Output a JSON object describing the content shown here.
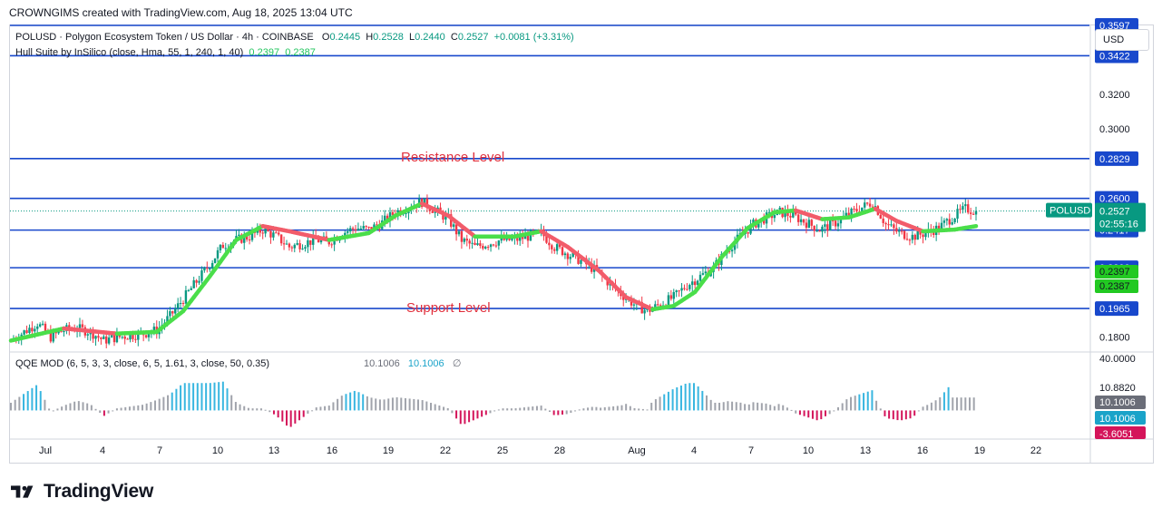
{
  "header": {
    "text": "CROWNGIMS created with TradingView.com, Aug 18, 2025 13:04 UTC"
  },
  "legend": {
    "symbol": "POLUSD · Polygon Ecosystem Token / US Dollar · 4h · COINBASE",
    "o_label": "O",
    "o": "0.2445",
    "h_label": "H",
    "h": "0.2528",
    "l_label": "L",
    "l": "0.2440",
    "c_label": "C",
    "c": "0.2527",
    "change": "+0.0081 (+3.31%)",
    "indicator": "Hull Suite by InSilico (close, Hma, 55, 1, 240, 1, 40)",
    "ind_v1": "0.2397",
    "ind_v2": "0.2387",
    "osc": "QQE MOD (6, 5, 3, 3, close, 6, 5, 1.61, 3, close, 50, 0.35)",
    "osc_v1": "10.1006",
    "osc_v2": "10.1006",
    "osc_v3": "∅"
  },
  "currency_button": "USD",
  "logo_text": "TradingView",
  "colors": {
    "up": "#089981",
    "down": "#f23645",
    "level": "#1848cc",
    "hull_up": "#4ade4a",
    "hull_down": "#f25c6a",
    "qqe_blue": "#38b6e0",
    "qqe_grey": "#a0a3ab",
    "qqe_red": "#d4145a",
    "annotation": "#e0303e"
  },
  "chart_data": {
    "type": "candlestick",
    "timeframe": "4h",
    "price_axis_ticks": [
      "0.3200",
      "0.3000",
      "0.1800"
    ],
    "ylim": [
      0.173,
      0.3597
    ],
    "x_ticks": [
      "Jul",
      "4",
      "7",
      "10",
      "13",
      "16",
      "19",
      "22",
      "25",
      "28",
      "Aug",
      "4",
      "7",
      "10",
      "13",
      "16",
      "19",
      "22"
    ],
    "levels": [
      {
        "value": 0.3597,
        "label": "0.3597"
      },
      {
        "value": 0.3422,
        "label": "0.3422"
      },
      {
        "value": 0.2829,
        "label": "0.2829"
      },
      {
        "value": 0.26,
        "label": "0.2600"
      },
      {
        "value": 0.2417,
        "label": "0.2417"
      },
      {
        "value": 0.22,
        "label": "0.2200"
      },
      {
        "value": 0.1965,
        "label": "0.1965"
      }
    ],
    "annotations": [
      {
        "text": "Resistance Level"
      },
      {
        "text": "Support Level"
      }
    ],
    "current_price": {
      "symbol": "POLUSD",
      "value": "0.2527",
      "countdown": "02:55:16"
    },
    "hull_labels": [
      "0.2397",
      "0.2387"
    ],
    "price_path": [
      [
        0,
        0.178
      ],
      [
        5,
        0.183
      ],
      [
        10,
        0.188
      ],
      [
        15,
        0.18
      ],
      [
        20,
        0.184
      ],
      [
        25,
        0.185
      ],
      [
        30,
        0.183
      ],
      [
        35,
        0.178
      ],
      [
        40,
        0.18
      ],
      [
        45,
        0.181
      ],
      [
        50,
        0.182
      ],
      [
        55,
        0.184
      ],
      [
        60,
        0.192
      ],
      [
        65,
        0.202
      ],
      [
        70,
        0.212
      ],
      [
        75,
        0.222
      ],
      [
        80,
        0.233
      ],
      [
        85,
        0.236
      ],
      [
        90,
        0.238
      ],
      [
        95,
        0.242
      ],
      [
        100,
        0.238
      ],
      [
        105,
        0.232
      ],
      [
        110,
        0.234
      ],
      [
        115,
        0.236
      ],
      [
        120,
        0.235
      ],
      [
        125,
        0.24
      ],
      [
        130,
        0.243
      ],
      [
        135,
        0.242
      ],
      [
        140,
        0.246
      ],
      [
        145,
        0.252
      ],
      [
        150,
        0.255
      ],
      [
        155,
        0.258
      ],
      [
        160,
        0.253
      ],
      [
        165,
        0.248
      ],
      [
        170,
        0.236
      ],
      [
        175,
        0.232
      ],
      [
        180,
        0.234
      ],
      [
        185,
        0.236
      ],
      [
        190,
        0.236
      ],
      [
        195,
        0.238
      ],
      [
        200,
        0.24
      ],
      [
        205,
        0.232
      ],
      [
        210,
        0.228
      ],
      [
        215,
        0.224
      ],
      [
        220,
        0.219
      ],
      [
        225,
        0.212
      ],
      [
        230,
        0.205
      ],
      [
        235,
        0.199
      ],
      [
        240,
        0.195
      ],
      [
        245,
        0.199
      ],
      [
        250,
        0.203
      ],
      [
        255,
        0.21
      ],
      [
        260,
        0.215
      ],
      [
        265,
        0.22
      ],
      [
        270,
        0.23
      ],
      [
        275,
        0.238
      ],
      [
        280,
        0.245
      ],
      [
        285,
        0.249
      ],
      [
        290,
        0.252
      ],
      [
        295,
        0.25
      ],
      [
        300,
        0.246
      ],
      [
        305,
        0.242
      ],
      [
        310,
        0.245
      ],
      [
        315,
        0.25
      ],
      [
        320,
        0.254
      ],
      [
        325,
        0.258
      ],
      [
        330,
        0.245
      ],
      [
        335,
        0.24
      ],
      [
        340,
        0.238
      ],
      [
        345,
        0.24
      ],
      [
        350,
        0.243
      ],
      [
        355,
        0.249
      ],
      [
        360,
        0.254
      ],
      [
        364,
        0.2527
      ]
    ],
    "hull_path": [
      [
        0,
        0.178
      ],
      [
        20,
        0.185
      ],
      [
        40,
        0.182
      ],
      [
        55,
        0.183
      ],
      [
        65,
        0.195
      ],
      [
        75,
        0.215
      ],
      [
        85,
        0.236
      ],
      [
        95,
        0.244
      ],
      [
        105,
        0.241
      ],
      [
        120,
        0.236
      ],
      [
        135,
        0.24
      ],
      [
        145,
        0.25
      ],
      [
        155,
        0.257
      ],
      [
        165,
        0.25
      ],
      [
        175,
        0.238
      ],
      [
        190,
        0.238
      ],
      [
        200,
        0.241
      ],
      [
        210,
        0.232
      ],
      [
        222,
        0.218
      ],
      [
        232,
        0.203
      ],
      [
        242,
        0.196
      ],
      [
        250,
        0.198
      ],
      [
        258,
        0.206
      ],
      [
        268,
        0.226
      ],
      [
        278,
        0.243
      ],
      [
        288,
        0.252
      ],
      [
        296,
        0.253
      ],
      [
        306,
        0.248
      ],
      [
        316,
        0.249
      ],
      [
        326,
        0.254
      ],
      [
        334,
        0.247
      ],
      [
        344,
        0.241
      ],
      [
        356,
        0.242
      ],
      [
        364,
        0.244
      ]
    ],
    "qqe_histogram": {
      "ylim": [
        -16,
        40
      ],
      "axis_ticks": [
        "40.0000",
        "10.8820"
      ],
      "last_values": [
        "10.1006",
        "10.1006",
        "-3.6051"
      ]
    }
  }
}
